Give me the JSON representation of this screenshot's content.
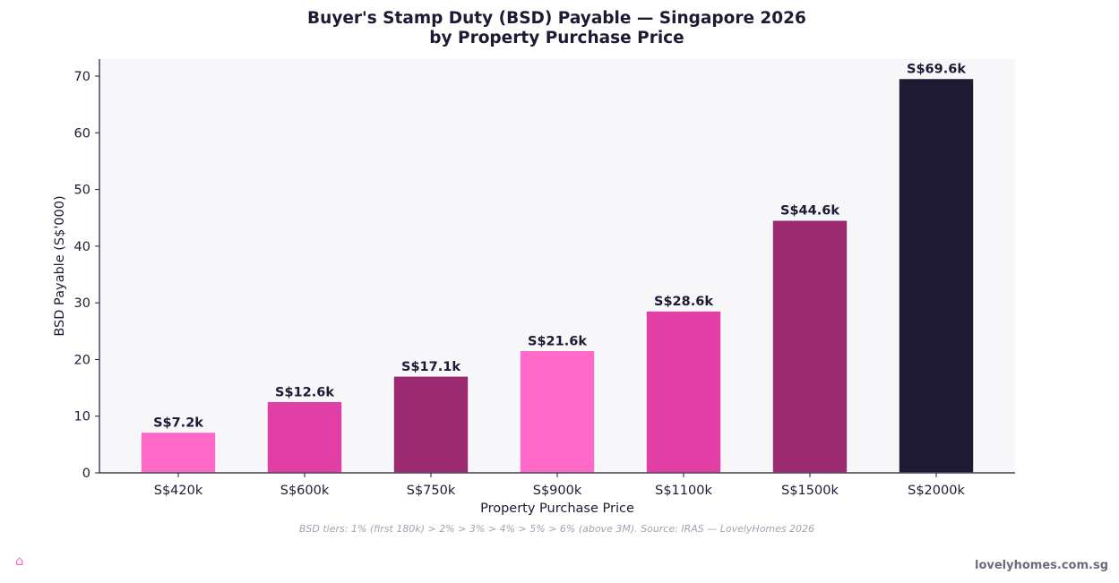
{
  "chart_data": {
    "type": "bar",
    "title": "Buyer's Stamp Duty (BSD) Payable — Singapore 2026",
    "subtitle": "by Property Purchase Price",
    "xlabel": "Property Purchase Price",
    "ylabel": "BSD Payable (S$'000)",
    "categories": [
      "S$420k",
      "S$600k",
      "S$750k",
      "S$900k",
      "S$1100k",
      "S$1500k",
      "S$2000k"
    ],
    "values": [
      7.2,
      12.6,
      17.1,
      21.6,
      28.6,
      44.6,
      69.6
    ],
    "data_labels": [
      "S$7.2k",
      "S$12.6k",
      "S$17.1k",
      "S$21.6k",
      "S$28.6k",
      "S$44.6k",
      "S$69.6k"
    ],
    "bar_colors": [
      "#ff69c8",
      "#e23fa6",
      "#9b2a70",
      "#ff69c8",
      "#e23fa6",
      "#9b2a70",
      "#1e1a33"
    ],
    "ylim": [
      0,
      73
    ],
    "yticks": [
      0,
      10,
      20,
      30,
      40,
      50,
      60,
      70
    ],
    "grid": false,
    "plot_background": "#f7f7fa",
    "text_color": "#1e1a33"
  },
  "footnote": "BSD tiers: 1% (first 180k) > 2% > 3% > 4% > 5% > 6% (above 3M). Source: IRAS — LovelyHomes 2026",
  "brand": {
    "icon": "house-icon",
    "site": "lovelyhomes.com.sg"
  }
}
